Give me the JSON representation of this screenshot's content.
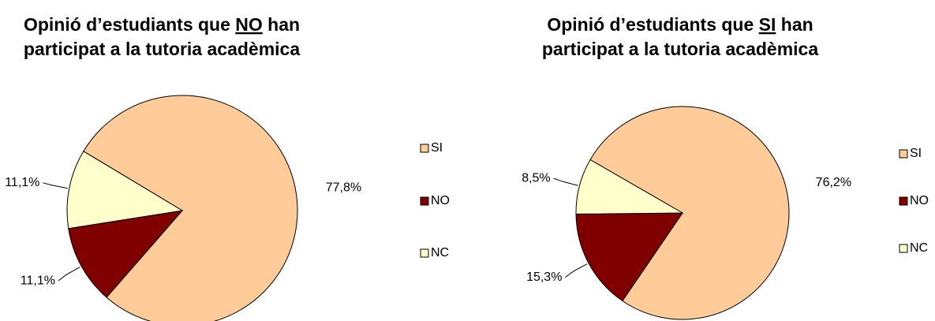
{
  "chart_data": [
    {
      "type": "pie",
      "title": [
        [
          "Opinió d’estudiants que ",
          "NO",
          " han"
        ],
        [
          "participat a la tutoria acadèmica"
        ]
      ],
      "underline": [
        0,
        1
      ],
      "categories": [
        "SI",
        "NO",
        "NC"
      ],
      "values": [
        77.8,
        11.1,
        11.1
      ],
      "value_labels": [
        "77,8%",
        "11,1%",
        "11,1%"
      ],
      "colors": [
        "#FFCC99",
        "#800000",
        "#FFFFCC"
      ]
    },
    {
      "type": "pie",
      "title": [
        [
          "Opinió d’estudiants que ",
          "SI",
          " han"
        ],
        [
          "participat a la tutoria acadèmica"
        ]
      ],
      "underline": [
        0,
        1
      ],
      "categories": [
        "SI",
        "NO",
        "NC"
      ],
      "values": [
        76.2,
        15.3,
        8.5
      ],
      "value_labels": [
        "76,2%",
        "15,3%",
        "8,5%"
      ],
      "colors": [
        "#FFCC99",
        "#800000",
        "#FFFFCC"
      ]
    }
  ]
}
